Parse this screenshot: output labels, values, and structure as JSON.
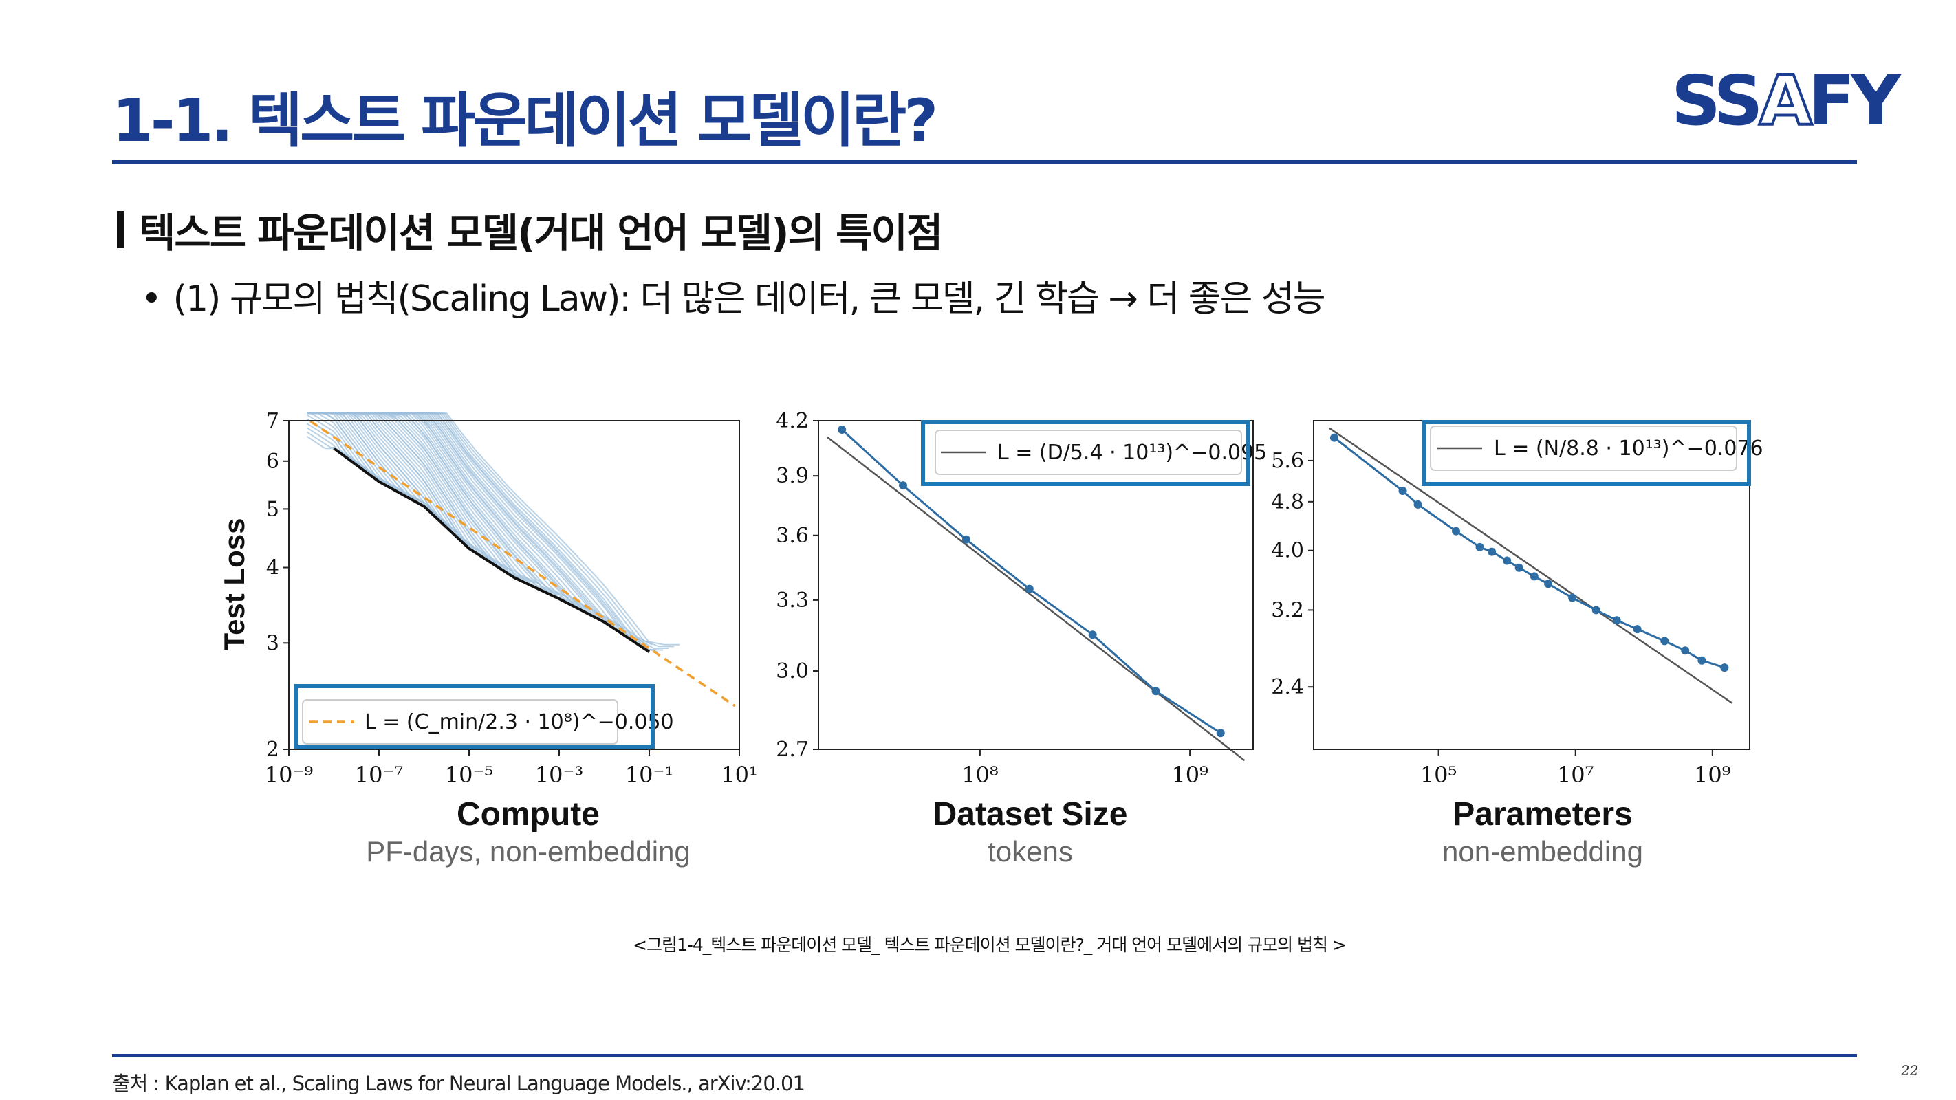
{
  "slide": {
    "title": "1-1. 텍스트 파운데이션 모델이란?",
    "logo_main": "SS",
    "logo_a": "A",
    "logo_end": "FY",
    "subheading": "텍스트 파운데이션 모델(거대 언어 모델)의 특이점",
    "bullet_marker": "•",
    "bullet": "(1) 규모의 법칙(Scaling Law): 더 많은 데이터, 큰 모델, 긴 학습 → 더 좋은 성능",
    "caption": "<그림1-4_텍스트 파운데이션 모델_ 텍스트 파운데이션 모델이란?_ 거대 언어 모델에서의 규모의 법칙 >",
    "source": "출처 : Kaplan et al., Scaling Laws for Neural Language Models., arXiv:20.01",
    "page_number": "22",
    "colors": {
      "brand": "#1a3d8f",
      "highlight_box": "#1f77b4",
      "series": "#2e6da4",
      "fit": "#555555",
      "frontier_fit": "#f0a030",
      "learning_curves": "#9dbfdb"
    }
  },
  "chart_data": [
    {
      "type": "line",
      "log_x": true,
      "log_y": true,
      "xlabel": "Compute",
      "xsublabel": "PF-days, non-embedding",
      "ylabel": "Test Loss",
      "xlim": [
        1e-09,
        10
      ],
      "ylim": [
        2,
        7
      ],
      "x_tick_labels": [
        "10⁻⁹",
        "10⁻⁷",
        "10⁻⁵",
        "10⁻³",
        "10⁻¹",
        "10¹"
      ],
      "x_tick_values": [
        1e-09,
        1e-07,
        1e-05,
        0.001,
        0.1,
        10
      ],
      "y_ticks": [
        2,
        3,
        4,
        5,
        6,
        7
      ],
      "legend": "L = (C_min/2.3 · 10⁸)^−0.050",
      "legend_position": "lower-left",
      "frontier_fit": {
        "a": 230000000,
        "alpha": 0.05
      },
      "frontier": [
        {
          "x": 1e-08,
          "y": 6.3
        },
        {
          "x": 1e-07,
          "y": 5.55
        },
        {
          "x": 1e-06,
          "y": 5.05
        },
        {
          "x": 1e-05,
          "y": 4.3
        },
        {
          "x": 0.0001,
          "y": 3.85
        },
        {
          "x": 0.001,
          "y": 3.55
        },
        {
          "x": 0.01,
          "y": 3.25
        },
        {
          "x": 0.1,
          "y": 2.9
        }
      ],
      "curve_count": 60
    },
    {
      "type": "line",
      "log_x": true,
      "log_y": true,
      "xlabel": "Dataset Size",
      "xsublabel": "tokens",
      "xlim": [
        17000000,
        2000000000
      ],
      "ylim": [
        2.7,
        4.2
      ],
      "x_tick_labels": [
        "10⁸",
        "10⁹"
      ],
      "x_tick_values": [
        100000000,
        1000000000
      ],
      "y_ticks": [
        2.7,
        3.0,
        3.3,
        3.6,
        3.9,
        4.2
      ],
      "legend": "L = (D/5.4 · 10¹³)^−0.095",
      "legend_position": "upper-right",
      "fit": {
        "a": 54000000000000,
        "alpha": 0.095
      },
      "points": [
        {
          "x": 22000000,
          "y": 4.15
        },
        {
          "x": 43000000,
          "y": 3.85
        },
        {
          "x": 86000000,
          "y": 3.58
        },
        {
          "x": 172000000,
          "y": 3.35
        },
        {
          "x": 344000000,
          "y": 3.15
        },
        {
          "x": 688000000,
          "y": 2.92
        },
        {
          "x": 1400000000,
          "y": 2.76
        }
      ]
    },
    {
      "type": "line",
      "log_x": true,
      "log_y": true,
      "xlabel": "Parameters",
      "xsublabel": "non-embedding",
      "xlim": [
        1500,
        3500000000
      ],
      "ylim": [
        1.9,
        6.5
      ],
      "x_tick_labels": [
        "10⁵",
        "10⁷",
        "10⁹"
      ],
      "x_tick_values": [
        100000,
        10000000,
        1000000000
      ],
      "y_ticks": [
        2.4,
        3.2,
        4.0,
        4.8,
        5.6
      ],
      "legend": "L = (N/8.8 · 10¹³)^−0.076",
      "legend_position": "upper-right",
      "fit": {
        "a": 88000000000000,
        "alpha": 0.076
      },
      "points": [
        {
          "x": 3000,
          "y": 6.1
        },
        {
          "x": 30000,
          "y": 5.0
        },
        {
          "x": 50000,
          "y": 4.75
        },
        {
          "x": 180000,
          "y": 4.3
        },
        {
          "x": 400000,
          "y": 4.05
        },
        {
          "x": 600000,
          "y": 3.98
        },
        {
          "x": 1000000,
          "y": 3.85
        },
        {
          "x": 1500000,
          "y": 3.75
        },
        {
          "x": 2500000,
          "y": 3.63
        },
        {
          "x": 4000000,
          "y": 3.53
        },
        {
          "x": 9000000,
          "y": 3.35
        },
        {
          "x": 20000000,
          "y": 3.2
        },
        {
          "x": 40000000,
          "y": 3.08
        },
        {
          "x": 80000000,
          "y": 2.98
        },
        {
          "x": 200000000,
          "y": 2.85
        },
        {
          "x": 400000000,
          "y": 2.75
        },
        {
          "x": 700000000,
          "y": 2.65
        },
        {
          "x": 1500000000,
          "y": 2.58
        }
      ]
    }
  ]
}
